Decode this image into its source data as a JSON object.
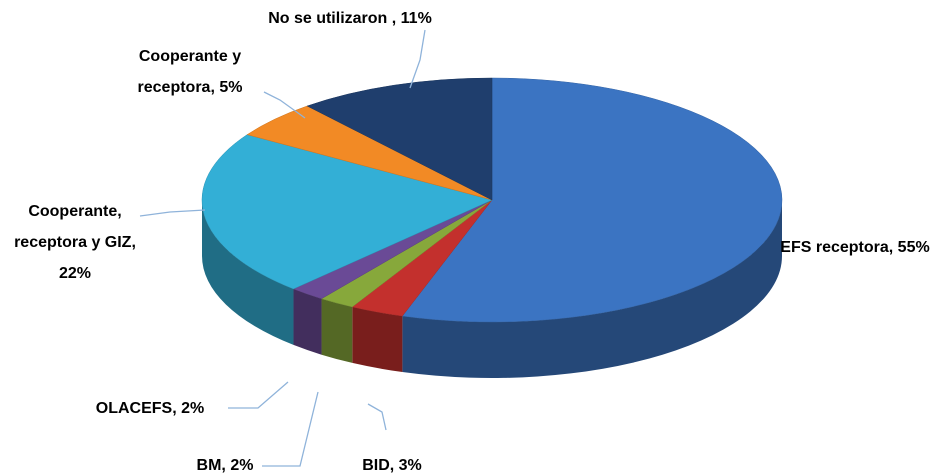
{
  "chart_data": {
    "type": "pie3d",
    "categories": [
      "EFS receptora,",
      "BID,",
      "BM,",
      "OLACEFS,",
      "Cooperante, receptora y GIZ,",
      "Cooperante y receptora,",
      "No se utilizaron ,"
    ],
    "values": [
      55,
      3,
      2,
      2,
      22,
      5,
      11
    ],
    "value_labels": [
      "55%",
      "3%",
      "2%",
      "2%",
      "22%",
      "5%",
      "11%"
    ],
    "colors": [
      "#3b74c2",
      "#c3302d",
      "#87a83b",
      "#6a4a96",
      "#33afd6",
      "#f28a25",
      "#1f3e6d"
    ]
  }
}
